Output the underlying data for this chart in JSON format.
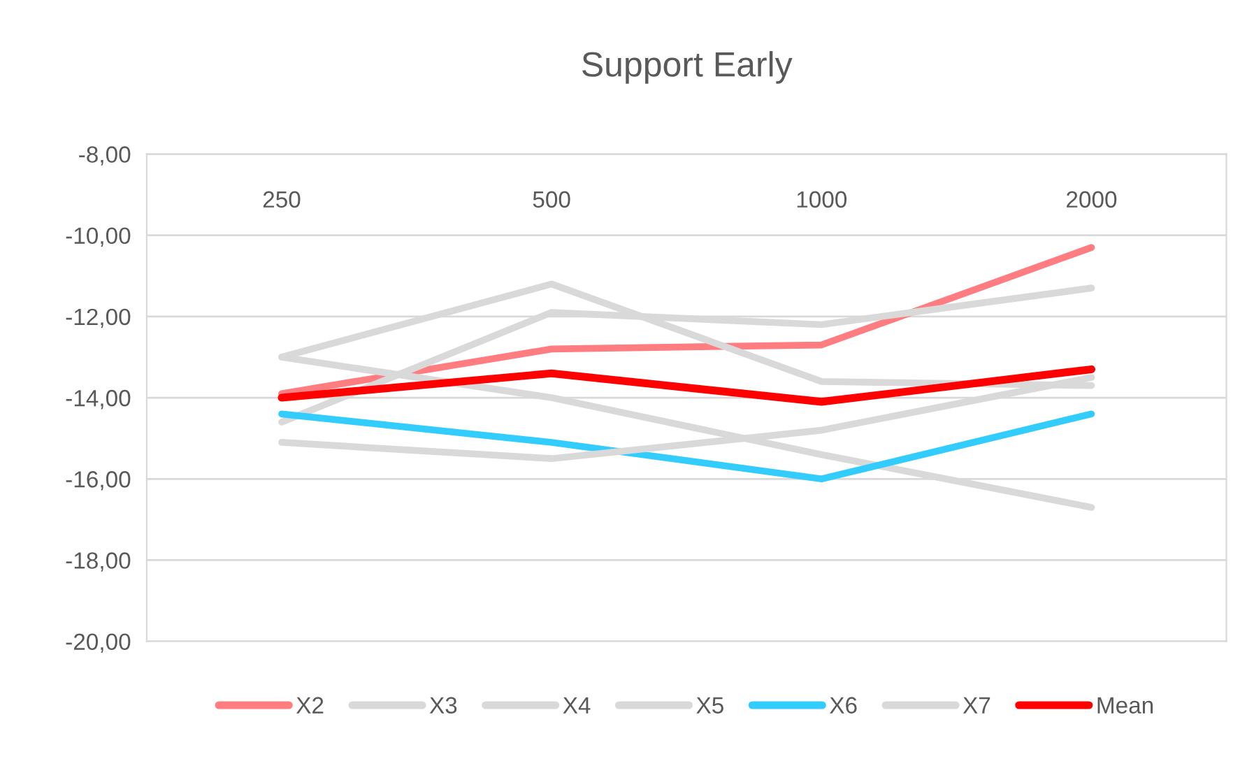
{
  "chart_data": {
    "type": "line",
    "title": "Support Early",
    "categories": [
      "250",
      "500",
      "1000",
      "2000"
    ],
    "series": [
      {
        "name": "X2",
        "color": "#ff7c80",
        "values": [
          -13.9,
          -12.8,
          -12.7,
          -10.3
        ]
      },
      {
        "name": "X3",
        "color": "#d9d9d9",
        "values": [
          -13.0,
          -11.2,
          -13.6,
          -13.7
        ]
      },
      {
        "name": "X4",
        "color": "#d9d9d9",
        "values": [
          -14.6,
          -11.9,
          -12.2,
          -11.3
        ]
      },
      {
        "name": "X5",
        "color": "#d9d9d9",
        "values": [
          -13.0,
          -14.0,
          -15.4,
          -16.7
        ]
      },
      {
        "name": "X6",
        "color": "#33ccff",
        "values": [
          -14.4,
          -15.1,
          -16.0,
          -14.4
        ]
      },
      {
        "name": "X7",
        "color": "#d9d9d9",
        "values": [
          -15.1,
          -15.5,
          -14.8,
          -13.5
        ]
      },
      {
        "name": "Mean",
        "color": "#ff0000",
        "values": [
          -14.0,
          -13.4,
          -14.1,
          -13.3
        ]
      }
    ],
    "ylim": [
      -20,
      -8
    ],
    "yticks": [
      {
        "value": -20,
        "label": "-20,00"
      },
      {
        "value": -18,
        "label": "-18,00"
      },
      {
        "value": -16,
        "label": "-16,00"
      },
      {
        "value": -14,
        "label": "-14,00"
      },
      {
        "value": -12,
        "label": "-12,00"
      },
      {
        "value": -10,
        "label": "-10,00"
      },
      {
        "value": -8,
        "label": "-8,00"
      }
    ],
    "grid": "y",
    "legend": "bottom",
    "marker": "none",
    "line_style": "solid"
  }
}
